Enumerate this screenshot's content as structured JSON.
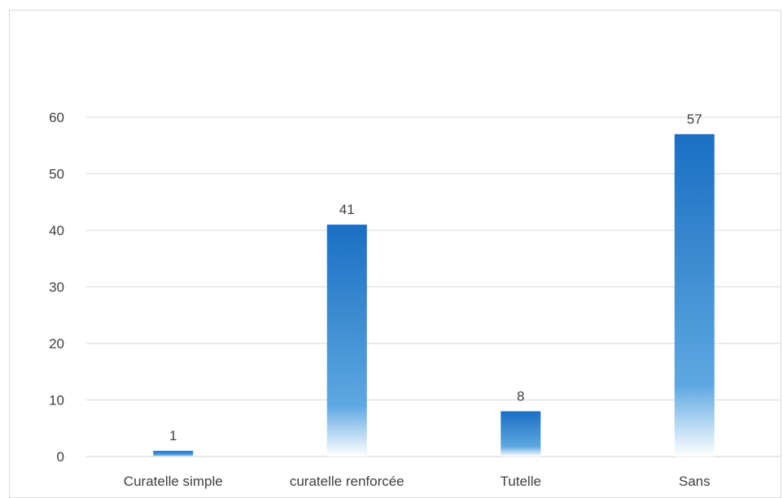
{
  "chart_data": {
    "type": "bar",
    "categories": [
      "Curatelle simple",
      "curatelle renforcée",
      "Tutelle",
      "Sans"
    ],
    "values": [
      1,
      41,
      8,
      57
    ],
    "data_labels": [
      "1",
      "41",
      "8",
      "57"
    ],
    "title": "",
    "xlabel": "",
    "ylabel": "",
    "ylim": [
      0,
      60
    ],
    "yticks": [
      "0",
      "10",
      "20",
      "30",
      "40",
      "50",
      "60"
    ],
    "grid": true,
    "legend": "none",
    "bar_color_top": "#1a6fc4",
    "bar_color_mid": "#4a97d6",
    "bar_color_bottom": "#ffffff",
    "gridline_color": "#d9d9d9"
  }
}
